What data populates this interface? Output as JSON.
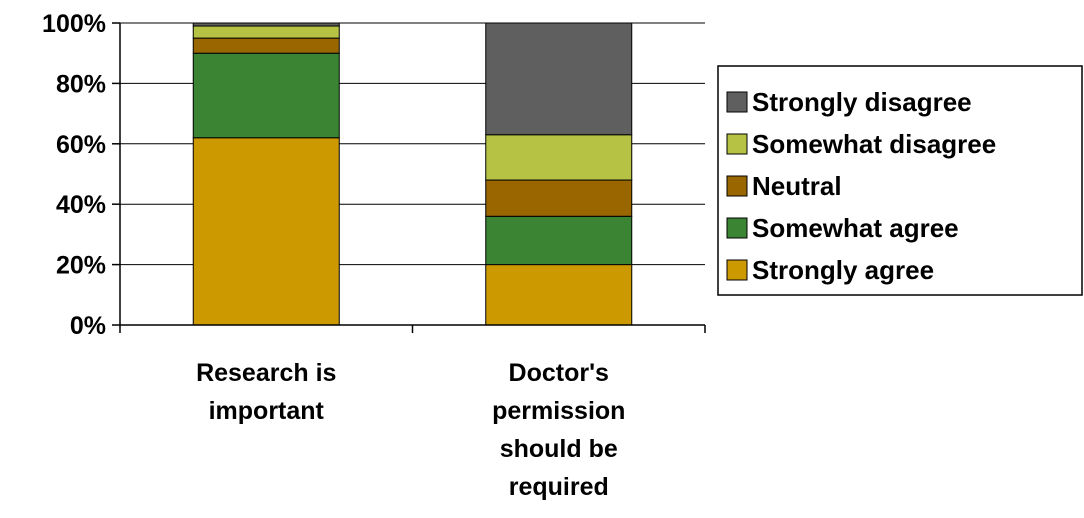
{
  "chart_data": {
    "type": "bar",
    "stacked": "percent",
    "categories": [
      [
        "Research is",
        "important"
      ],
      [
        "Doctor's",
        "permission",
        "should be",
        "required"
      ]
    ],
    "series": [
      {
        "name": "Strongly agree",
        "color": "#CC9900",
        "values": [
          62,
          20
        ]
      },
      {
        "name": "Somewhat agree",
        "color": "#3A8434",
        "values": [
          28,
          16
        ]
      },
      {
        "name": "Neutral",
        "color": "#996600",
        "values": [
          5,
          12
        ]
      },
      {
        "name": "Somewhat disagree",
        "color": "#B5C243",
        "values": [
          4,
          15
        ]
      },
      {
        "name": "Strongly disagree",
        "color": "#5F5F5F",
        "values": [
          1,
          37
        ]
      }
    ],
    "ylim": [
      0,
      100
    ],
    "yticks": [
      "0%",
      "20%",
      "40%",
      "60%",
      "80%",
      "100%"
    ],
    "grid": true,
    "legend_placement": "right"
  }
}
